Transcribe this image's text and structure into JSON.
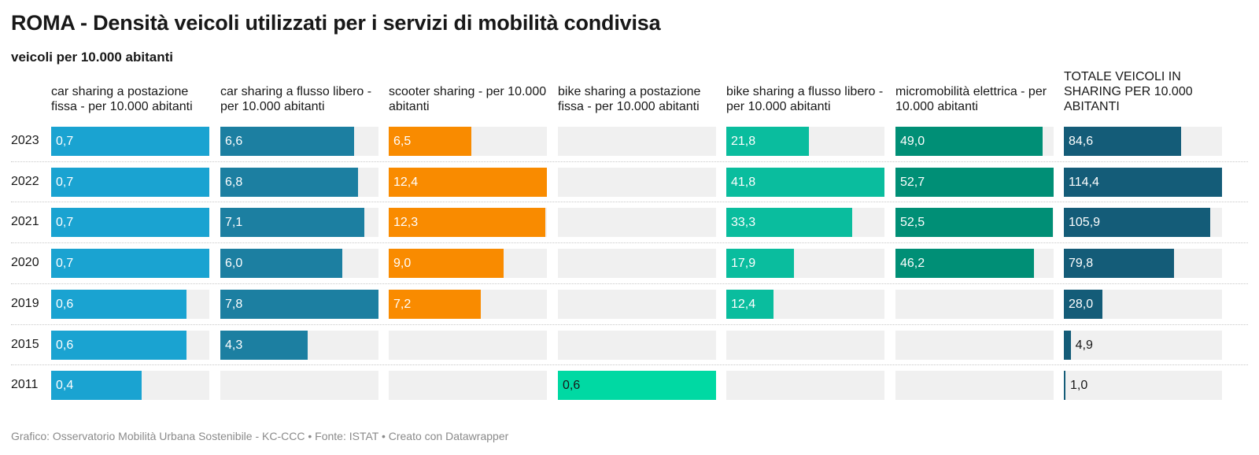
{
  "title": "ROMA - Densità veicoli utilizzati per i servizi di mobilità condivisa",
  "subtitle": "veicoli per 10.000 abitanti",
  "footer": "Grafico: Osservatorio Mobilità Urbana Sostenibile - KC-CCC • Fonte: ISTAT • Creato con Datawrapper",
  "chart_data": {
    "type": "bar",
    "orientation": "horizontal",
    "layout": "small-multiples",
    "categories": [
      "2023",
      "2022",
      "2021",
      "2020",
      "2019",
      "2015",
      "2011"
    ],
    "series": [
      {
        "name": "car sharing a postazione fissa - per 10.000 abitanti",
        "color": "#1aa3d1",
        "values": [
          0.7,
          0.7,
          0.7,
          0.7,
          0.6,
          0.6,
          0.4
        ],
        "labels": [
          "0,7",
          "0,7",
          "0,7",
          "0,7",
          "0,6",
          "0,6",
          "0,4"
        ],
        "max": 0.7
      },
      {
        "name": "car sharing a flusso libero - per 10.000 abitanti",
        "color": "#1c7fa1",
        "values": [
          6.6,
          6.8,
          7.1,
          6.0,
          7.8,
          4.3,
          null
        ],
        "labels": [
          "6,6",
          "6,8",
          "7,1",
          "6,0",
          "7,8",
          "4,3",
          null
        ],
        "max": 7.8
      },
      {
        "name": "scooter sharing - per 10.000 abitanti",
        "color": "#f98b00",
        "values": [
          6.5,
          12.4,
          12.3,
          9.0,
          7.2,
          null,
          null
        ],
        "labels": [
          "6,5",
          "12,4",
          "12,3",
          "9,0",
          "7,2",
          null,
          null
        ],
        "max": 12.4
      },
      {
        "name": "bike sharing a postazione fissa - per 10.000 abitanti",
        "color": "#00d9a3",
        "labelColor": "#181818",
        "values": [
          null,
          null,
          null,
          null,
          null,
          null,
          0.6
        ],
        "labels": [
          null,
          null,
          null,
          null,
          null,
          null,
          "0,6"
        ],
        "max": 0.6
      },
      {
        "name": "bike sharing a flusso libero - per 10.000 abitanti",
        "color": "#0abd9e",
        "values": [
          21.8,
          41.8,
          33.3,
          17.9,
          12.4,
          null,
          null
        ],
        "labels": [
          "21,8",
          "41,8",
          "33,3",
          "17,9",
          "12,4",
          null,
          null
        ],
        "max": 41.8
      },
      {
        "name": "micromobilità elettrica - per 10.000 abitanti",
        "color": "#008f76",
        "values": [
          49.0,
          52.7,
          52.5,
          46.2,
          null,
          null,
          null
        ],
        "labels": [
          "49,0",
          "52,7",
          "52,5",
          "46,2",
          null,
          null,
          null
        ],
        "max": 52.7
      },
      {
        "name": "TOTALE VEICOLI IN SHARING PER 10.000 ABITANTI",
        "color": "#145c78",
        "values": [
          84.6,
          114.4,
          105.9,
          79.8,
          28.0,
          4.9,
          1.0
        ],
        "labels": [
          "84,6",
          "114,4",
          "105,9",
          "79,8",
          "28,0",
          "4,9",
          "1,0"
        ],
        "max": 114.4
      }
    ]
  }
}
